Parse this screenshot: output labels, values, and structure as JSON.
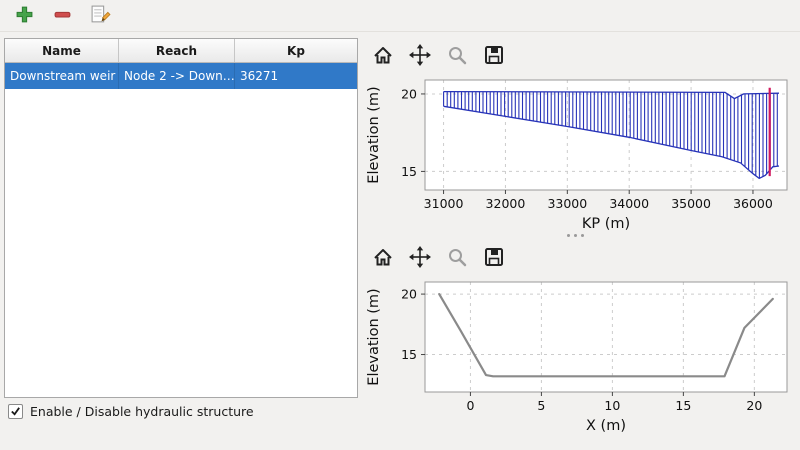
{
  "window": {
    "bg_color": "#f2f1ef",
    "selection_color": "#3079c8"
  },
  "main_toolbar": {
    "icons": [
      "plus-icon",
      "minus-icon",
      "edit-icon"
    ]
  },
  "table": {
    "columns": [
      "Name",
      "Reach",
      "Kp"
    ],
    "rows": [
      {
        "name": "Downstream weir",
        "reach": "Node 2 -> Down…",
        "kp": "36271",
        "selected": true
      }
    ]
  },
  "checkbox": {
    "label": "Enable / Disable hydraulic structure",
    "checked": true
  },
  "plot_toolbar": {
    "icons": [
      "home-icon",
      "pan-icon",
      "zoom-icon",
      "save-icon"
    ]
  },
  "chart_data": [
    {
      "type": "area",
      "xlabel": "KP (m)",
      "ylabel": "Elevation (m)",
      "xlim": [
        30700,
        36550
      ],
      "ylim": [
        13.8,
        20.9
      ],
      "xticks": [
        31000,
        32000,
        33000,
        34000,
        35000,
        36000
      ],
      "yticks": [
        15,
        20
      ],
      "grid": true,
      "legend": "none",
      "hatch_color": "#2733b8",
      "hatch_step": 58,
      "hatch_range": [
        31000,
        36420
      ],
      "top_profile": [
        [
          31000,
          20.15
        ],
        [
          35550,
          20.1
        ],
        [
          35700,
          19.7
        ],
        [
          35850,
          20.0
        ],
        [
          36420,
          20.05
        ]
      ],
      "bottom_profile": [
        [
          31000,
          19.2
        ],
        [
          32000,
          18.55
        ],
        [
          33000,
          17.9
        ],
        [
          34000,
          17.2
        ],
        [
          35000,
          16.35
        ],
        [
          35500,
          15.95
        ],
        [
          35800,
          15.55
        ],
        [
          36000,
          14.85
        ],
        [
          36100,
          14.55
        ],
        [
          36200,
          14.75
        ],
        [
          36320,
          15.3
        ],
        [
          36420,
          15.35
        ]
      ],
      "marker_line": {
        "x": 36271,
        "y_top": 20.4,
        "y_bottom": 14.7,
        "color": "#d2195f"
      }
    },
    {
      "type": "line",
      "xlabel": "X (m)",
      "ylabel": "Elevation (m)",
      "xlim": [
        -3.2,
        22.3
      ],
      "ylim": [
        11.9,
        21.0
      ],
      "xticks": [
        0,
        5,
        10,
        15,
        20
      ],
      "yticks": [
        15,
        20
      ],
      "grid": true,
      "legend": "none",
      "line_color": "#8a8a8a",
      "points": [
        [
          -2.2,
          20.0
        ],
        [
          -0.7,
          17.0
        ],
        [
          1.1,
          13.3
        ],
        [
          1.6,
          13.2
        ],
        [
          17.9,
          13.2
        ],
        [
          19.3,
          17.2
        ],
        [
          21.3,
          19.6
        ]
      ]
    }
  ]
}
